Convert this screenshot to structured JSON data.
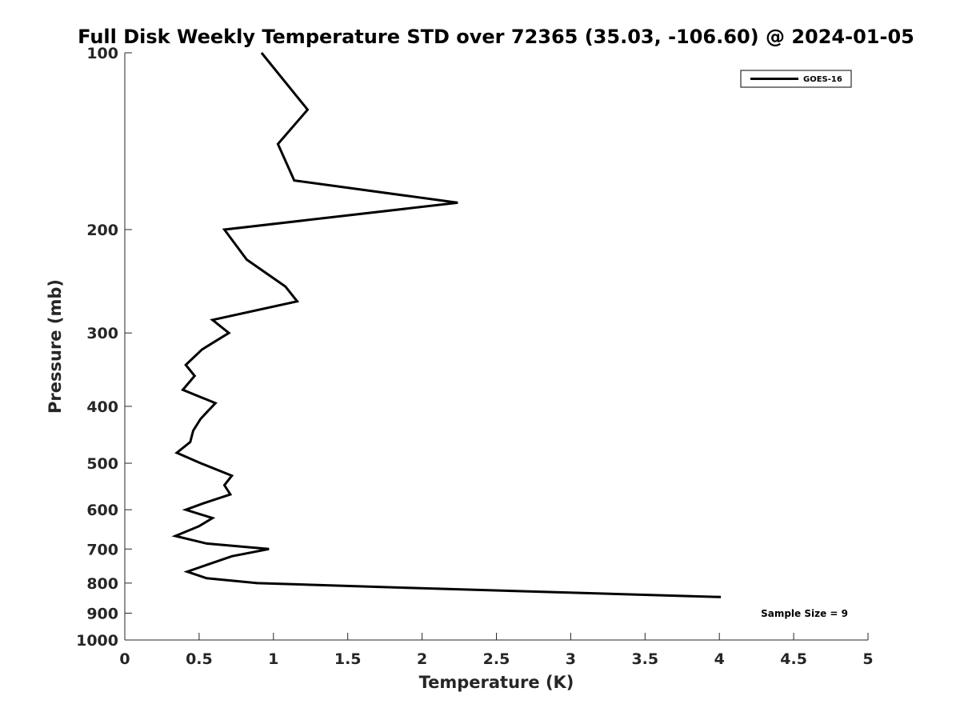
{
  "chart_data": {
    "type": "line",
    "title": "Full Disk Weekly Temperature STD over 72365 (35.03, -106.60) @ 2024-01-05",
    "xlabel": "Temperature (K)",
    "ylabel": "Pressure (mb)",
    "xlim": [
      0,
      5
    ],
    "ylim": [
      100,
      1000
    ],
    "y_scale": "log",
    "y_reversed": true,
    "x_ticks": [
      "0",
      "0.5",
      "1",
      "1.5",
      "2",
      "2.5",
      "3",
      "3.5",
      "4",
      "4.5",
      "5"
    ],
    "x_tick_values": [
      0,
      0.5,
      1,
      1.5,
      2,
      2.5,
      3,
      3.5,
      4,
      4.5,
      5
    ],
    "y_ticks": [
      "100",
      "200",
      "300",
      "400",
      "500",
      "600",
      "700",
      "800",
      "900",
      "1000"
    ],
    "y_tick_values": [
      100,
      200,
      300,
      400,
      500,
      600,
      700,
      800,
      900,
      1000
    ],
    "legend_position": "top-right",
    "grid": false,
    "annotation": "Sample Size = 9",
    "series": [
      {
        "name": "GOES-16",
        "color": "#000000",
        "points": [
          [
            0.92,
            100
          ],
          [
            1.23,
            125
          ],
          [
            1.03,
            143
          ],
          [
            1.14,
            165
          ],
          [
            2.24,
            180
          ],
          [
            0.67,
            200
          ],
          [
            0.82,
            225
          ],
          [
            1.08,
            250
          ],
          [
            1.16,
            265
          ],
          [
            0.59,
            285
          ],
          [
            0.7,
            300
          ],
          [
            0.52,
            320
          ],
          [
            0.41,
            340
          ],
          [
            0.47,
            355
          ],
          [
            0.39,
            375
          ],
          [
            0.61,
            395
          ],
          [
            0.51,
            420
          ],
          [
            0.46,
            440
          ],
          [
            0.44,
            460
          ],
          [
            0.35,
            480
          ],
          [
            0.51,
            500
          ],
          [
            0.72,
            525
          ],
          [
            0.67,
            545
          ],
          [
            0.71,
            565
          ],
          [
            0.53,
            585
          ],
          [
            0.41,
            600
          ],
          [
            0.59,
            620
          ],
          [
            0.5,
            640
          ],
          [
            0.34,
            665
          ],
          [
            0.55,
            685
          ],
          [
            0.97,
            700
          ],
          [
            0.72,
            720
          ],
          [
            0.55,
            745
          ],
          [
            0.42,
            765
          ],
          [
            0.55,
            785
          ],
          [
            0.89,
            800
          ],
          [
            1.9,
            815
          ],
          [
            4.01,
            845
          ]
        ]
      }
    ]
  }
}
